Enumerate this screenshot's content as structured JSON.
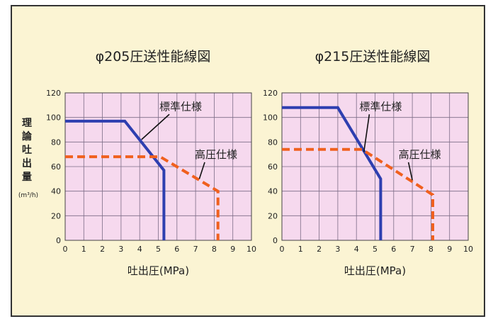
{
  "colors": {
    "panel_bg": "#FBF4D3",
    "plot_bg": "#F6D9EE",
    "grid": "#7C6C86",
    "standard": "#2E3FB0",
    "high": "#F0601E",
    "text": "#222222"
  },
  "shared": {
    "ylabel_chars": [
      "理",
      "論",
      "吐",
      "出",
      "量"
    ],
    "yunit": "(m³/h)"
  },
  "chart_data": [
    {
      "type": "line",
      "title": "φ205圧送性能線図",
      "xlabel": "吐出圧(MPa)",
      "ylabel": "理論吐出量",
      "xlim": [
        0,
        10
      ],
      "ylim": [
        0,
        120
      ],
      "xticks": [
        "0",
        "1",
        "2",
        "3",
        "4",
        "5",
        "6",
        "7",
        "8",
        "9",
        "10"
      ],
      "yticks": [
        "0",
        "20",
        "40",
        "60",
        "80",
        "100",
        "120"
      ],
      "grid": true,
      "series": [
        {
          "name": "標準仕様",
          "style": "solid",
          "color": "#2E3FB0",
          "points": [
            [
              0,
              97
            ],
            [
              3.2,
              97
            ],
            [
              5.3,
              57
            ],
            [
              5.3,
              0
            ]
          ]
        },
        {
          "name": "高圧仕様",
          "style": "dashed",
          "color": "#F0601E",
          "points": [
            [
              0,
              68
            ],
            [
              5.1,
              68
            ],
            [
              8.2,
              40
            ],
            [
              8.2,
              0
            ]
          ]
        }
      ],
      "annotations": [
        {
          "text": "標準仕様",
          "series": 0,
          "anchor": [
            4.1,
            82
          ],
          "label_at": [
            6.2,
            106
          ]
        },
        {
          "text": "高圧仕様",
          "series": 1,
          "anchor": [
            7.2,
            50
          ],
          "label_at": [
            8.1,
            67
          ]
        }
      ]
    },
    {
      "type": "line",
      "title": "φ215圧送性能線図",
      "xlabel": "吐出圧(MPa)",
      "ylabel": "",
      "xlim": [
        0,
        10
      ],
      "ylim": [
        0,
        120
      ],
      "xticks": [
        "0",
        "1",
        "2",
        "3",
        "4",
        "5",
        "6",
        "7",
        "8",
        "9",
        "10"
      ],
      "yticks": [
        "0",
        "20",
        "40",
        "60",
        "80",
        "100",
        "120"
      ],
      "grid": true,
      "series": [
        {
          "name": "標準仕様",
          "style": "solid",
          "color": "#2E3FB0",
          "points": [
            [
              0,
              108
            ],
            [
              3,
              108
            ],
            [
              5.3,
              50
            ],
            [
              5.3,
              0
            ]
          ]
        },
        {
          "name": "高圧仕様",
          "style": "dashed",
          "color": "#F0601E",
          "points": [
            [
              0,
              74
            ],
            [
              4.3,
              74
            ],
            [
              8.1,
              37
            ],
            [
              8.1,
              0
            ]
          ]
        }
      ],
      "annotations": [
        {
          "text": "標準仕様",
          "series": 0,
          "anchor": [
            4.4,
            72
          ],
          "label_at": [
            5.3,
            106
          ]
        },
        {
          "text": "高圧仕様",
          "series": 1,
          "anchor": [
            7,
            49
          ],
          "label_at": [
            7.4,
            67
          ]
        }
      ]
    }
  ]
}
